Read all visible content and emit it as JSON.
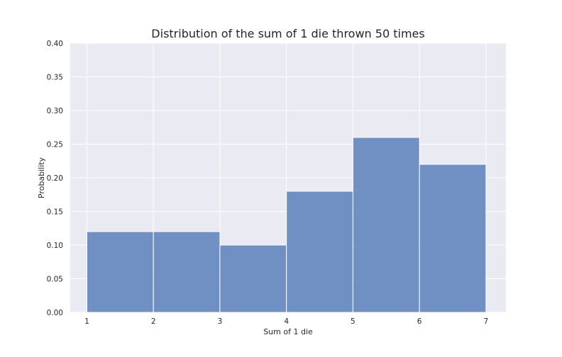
{
  "chart_data": {
    "type": "bar",
    "title": "Distribution of the sum of 1 die thrown 50 times",
    "xlabel": "Sum of 1 die",
    "ylabel": "Probability",
    "bins": [
      {
        "start": 1,
        "end": 2,
        "value": 0.12
      },
      {
        "start": 2,
        "end": 3,
        "value": 0.12
      },
      {
        "start": 3,
        "end": 4,
        "value": 0.1
      },
      {
        "start": 4,
        "end": 5,
        "value": 0.18
      },
      {
        "start": 5,
        "end": 6,
        "value": 0.26
      },
      {
        "start": 6,
        "end": 7,
        "value": 0.22
      }
    ],
    "xlim": [
      0.75,
      7.3
    ],
    "ylim": [
      0,
      0.4
    ],
    "xticks": [
      1,
      2,
      3,
      4,
      5,
      6,
      7
    ],
    "xtick_labels": [
      "1",
      "2",
      "3",
      "4",
      "5",
      "6",
      "7"
    ],
    "yticks": [
      0,
      0.05,
      0.1,
      0.15,
      0.2,
      0.25,
      0.3,
      0.35,
      0.4
    ],
    "ytick_labels": [
      "0.00",
      "0.05",
      "0.10",
      "0.15",
      "0.20",
      "0.25",
      "0.30",
      "0.35",
      "0.40"
    ],
    "grid": true,
    "colors": {
      "bar_fill": "#5a7fba",
      "bar_edge": "#ffffff",
      "plot_background": "#eaeaf2",
      "grid": "#ffffff",
      "text": "#262626"
    }
  }
}
